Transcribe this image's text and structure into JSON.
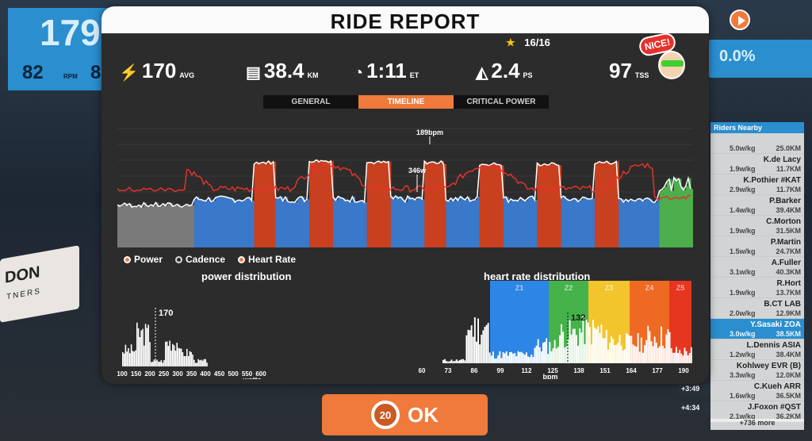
{
  "hud": {
    "speed_value": "179",
    "cadence_value": "82",
    "cadence_unit": "RPM",
    "second_value": "8",
    "grade_value": "0.0%"
  },
  "background": {
    "banner_text_1": "DON",
    "banner_text_2": "TNERS"
  },
  "report": {
    "title": "RIDE REPORT",
    "stars_text": "16/16",
    "stats": {
      "power_value": "170",
      "power_unit": "AVG",
      "distance_value": "38.4",
      "distance_unit": "KM",
      "time_value": "1:11",
      "time_unit": "ET",
      "pizza_value": "2.4",
      "pizza_unit": "PS",
      "tss_value": "97",
      "tss_unit": "TSS"
    },
    "badge_text": "NICE!",
    "tabs": [
      {
        "label": "GENERAL",
        "active": false
      },
      {
        "label": "TIMELINE",
        "active": true
      },
      {
        "label": "CRITICAL POWER",
        "active": false
      }
    ],
    "legend": {
      "power": "Power",
      "cadence": "Cadence",
      "heart_rate": "Heart Rate"
    },
    "power_distribution_title": "power distribution",
    "heart_rate_distribution_title": "heart rate distribution",
    "ok_label": "OK",
    "ok_countdown": "20"
  },
  "chart_data": [
    {
      "type": "area",
      "title": "",
      "series": [
        {
          "name": "Power",
          "color": "#ffffff"
        },
        {
          "name": "Heart Rate",
          "color": "#e5322b"
        }
      ],
      "annotations": [
        "189bpm",
        "346w"
      ],
      "max_heart_rate_bpm": 189,
      "max_power_w": 346,
      "power_zone_colors": [
        "#7a7a7a",
        "#3a78c9",
        "#4cae4c",
        "#f2c230",
        "#e8732c",
        "#c8401f"
      ],
      "efforts": [
        {
          "start": 0.234,
          "end": 0.274,
          "watts": 250
        },
        {
          "start": 0.332,
          "end": 0.375,
          "watts": 255
        },
        {
          "start": 0.431,
          "end": 0.471,
          "watts": 250
        },
        {
          "start": 0.53,
          "end": 0.57,
          "watts": 250
        },
        {
          "start": 0.629,
          "end": 0.669,
          "watts": 245
        },
        {
          "start": 0.728,
          "end": 0.768,
          "watts": 245
        },
        {
          "start": 0.827,
          "end": 0.867,
          "watts": 250
        }
      ]
    },
    {
      "type": "bar",
      "title": "power distribution",
      "xlabel": "watts",
      "categories": [
        "100",
        "150",
        "200",
        "250",
        "300",
        "350",
        "400",
        "450",
        "500",
        "550",
        "600"
      ],
      "values": [
        0.3,
        0.6,
        0.1,
        0.45,
        0.25,
        0.1,
        0,
        0,
        0,
        0,
        0
      ],
      "average_label": "170",
      "average": 170
    },
    {
      "type": "bar",
      "title": "heart rate distribution",
      "xlabel": "bpm",
      "categories": [
        "60",
        "73",
        "86",
        "99",
        "112",
        "125",
        "138",
        "151",
        "164",
        "177",
        "190"
      ],
      "values": [
        0.05,
        0.6,
        0.15,
        0.15,
        0.3,
        0.5,
        0.55,
        0.4,
        0.35,
        0.45,
        0.2
      ],
      "zones": [
        {
          "label": "Z1",
          "color": "#2d86e6"
        },
        {
          "label": "Z2",
          "color": "#45b34a"
        },
        {
          "label": "Z3",
          "color": "#f3c52d"
        },
        {
          "label": "Z4",
          "color": "#ee6a22"
        },
        {
          "label": "Z5",
          "color": "#e7361f"
        }
      ],
      "average_label": "132",
      "average": 132
    }
  ],
  "riders_nearby": {
    "title": "Riders Nearby",
    "riders": [
      {
        "name": "",
        "wkg": "5.0w/kg",
        "dist": "25.0KM",
        "highlight": false
      },
      {
        "name": "K.de Lacy",
        "wkg": "1.9w/kg",
        "dist": "11.7KM",
        "highlight": false
      },
      {
        "name": "K.Pothier #KAT",
        "wkg": "2.9w/kg",
        "dist": "11.7KM",
        "highlight": false
      },
      {
        "name": "P.Barker",
        "wkg": "1.4w/kg",
        "dist": "39.4KM",
        "highlight": false
      },
      {
        "name": "C.Morton",
        "wkg": "1.9w/kg",
        "dist": "31.5KM",
        "highlight": false
      },
      {
        "name": "P.Martin",
        "wkg": "1.5w/kg",
        "dist": "24.7KM",
        "highlight": false
      },
      {
        "name": "A.Fuller",
        "wkg": "3.1w/kg",
        "dist": "40.3KM",
        "highlight": false
      },
      {
        "name": "R.Hort",
        "wkg": "1.9w/kg",
        "dist": "13.7KM",
        "highlight": false
      },
      {
        "name": "B.CT LAB",
        "wkg": "2.0w/kg",
        "dist": "12.9KM",
        "highlight": false
      },
      {
        "name": "Y.Sasaki ZOA",
        "wkg": "3.0w/kg",
        "dist": "38.5KM",
        "highlight": true
      },
      {
        "name": "L.Dennis ASIA",
        "wkg": "1.2w/kg",
        "dist": "38.4KM",
        "highlight": false
      },
      {
        "name": "Kohlwey EVR (B)",
        "wkg": "3.3w/kg",
        "dist": "12.0KM",
        "highlight": false
      },
      {
        "name": "C.Kueh ARR",
        "wkg": "1.6w/kg",
        "dist": "36.5KM",
        "highlight": false
      },
      {
        "name": "J.Foxon #QST",
        "wkg": "2.1w/kg",
        "dist": "36.2KM",
        "highlight": false
      }
    ],
    "gaps": [
      "+3:49",
      "+4:34"
    ],
    "more": "+736 more"
  }
}
